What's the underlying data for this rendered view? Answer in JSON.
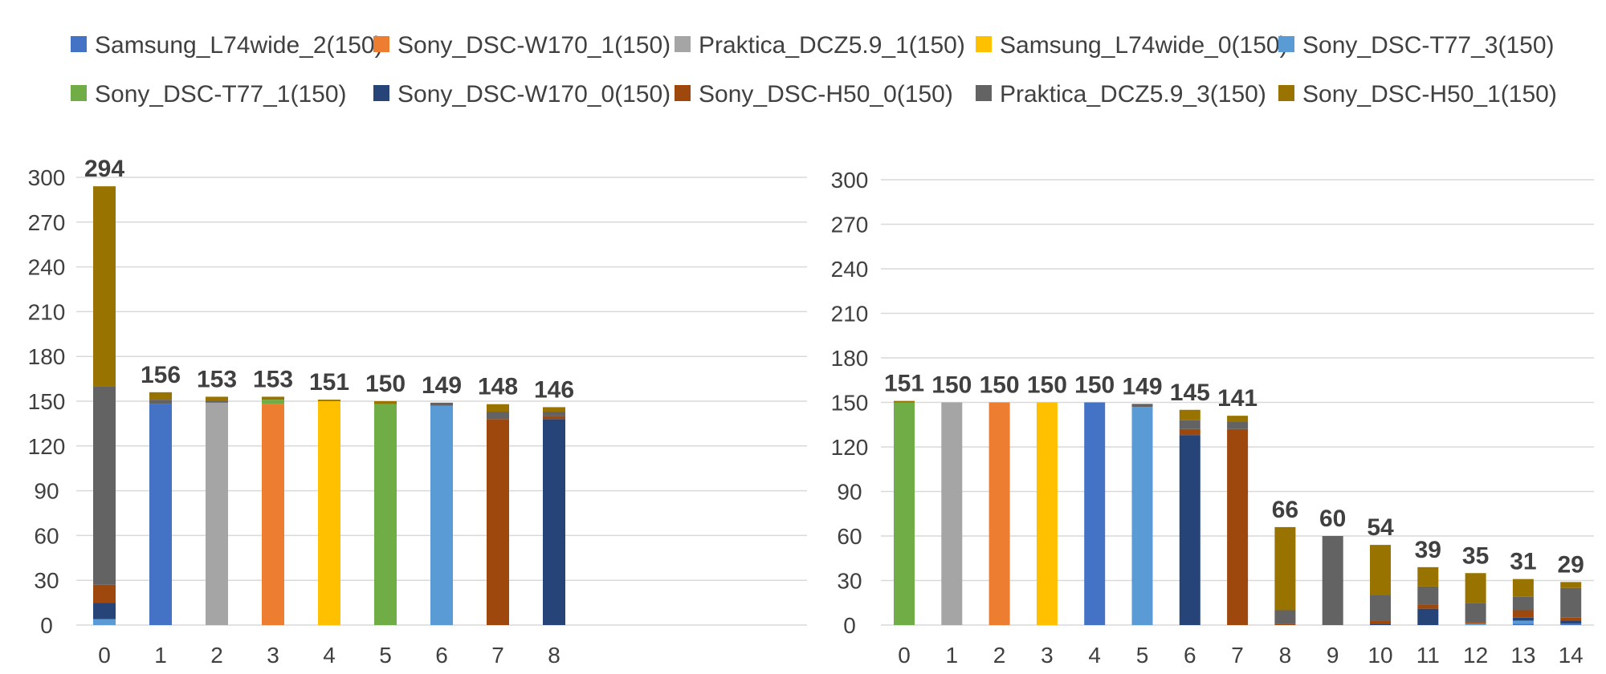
{
  "legend": [
    {
      "name": "Samsung_L74wide_2(150)",
      "color": "#4472C4"
    },
    {
      "name": "Sony_DSC-W170_1(150)",
      "color": "#ED7D31"
    },
    {
      "name": "Praktica_DCZ5.9_1(150)",
      "color": "#A5A5A5"
    },
    {
      "name": "Samsung_L74wide_0(150)",
      "color": "#FFC000"
    },
    {
      "name": "Sony_DSC-T77_3(150)",
      "color": "#5B9BD5"
    },
    {
      "name": "Sony_DSC-T77_1(150)",
      "color": "#70AD47"
    },
    {
      "name": "Sony_DSC-W170_0(150)",
      "color": "#264478"
    },
    {
      "name": "Sony_DSC-H50_0(150)",
      "color": "#9E480E"
    },
    {
      "name": "Praktica_DCZ5.9_3(150)",
      "color": "#636363"
    },
    {
      "name": "Sony_DSC-H50_1(150)",
      "color": "#997300"
    }
  ],
  "chart_data": [
    {
      "type": "bar",
      "stacked": true,
      "ylim": [
        0,
        300
      ],
      "yticks": [
        0,
        30,
        60,
        90,
        120,
        150,
        180,
        210,
        240,
        270,
        300
      ],
      "categories": [
        "0",
        "1",
        "2",
        "3",
        "4",
        "5",
        "6",
        "7",
        "8"
      ],
      "totals": [
        294,
        156,
        153,
        153,
        151,
        150,
        149,
        148,
        146
      ],
      "series": [
        {
          "name": "Samsung_L74wide_2(150)",
          "values": [
            0,
            148,
            0,
            0,
            0,
            0,
            0,
            0,
            0
          ]
        },
        {
          "name": "Sony_DSC-W170_1(150)",
          "values": [
            0,
            0,
            0,
            148,
            0,
            0,
            0,
            0,
            0
          ]
        },
        {
          "name": "Praktica_DCZ5.9_1(150)",
          "values": [
            0,
            0,
            149,
            0,
            0,
            0,
            0,
            0,
            0
          ]
        },
        {
          "name": "Samsung_L74wide_0(150)",
          "values": [
            0,
            0,
            0,
            0,
            150,
            0,
            0,
            0,
            0
          ]
        },
        {
          "name": "Sony_DSC-T77_3(150)",
          "values": [
            4,
            0,
            0,
            0,
            0,
            0,
            147,
            0,
            0
          ]
        },
        {
          "name": "Sony_DSC-T77_1(150)",
          "values": [
            0,
            0,
            0,
            3,
            0,
            148,
            0,
            0,
            0
          ]
        },
        {
          "name": "Sony_DSC-W170_0(150)",
          "values": [
            11,
            0,
            0,
            0,
            0,
            0,
            0,
            0,
            138
          ]
        },
        {
          "name": "Sony_DSC-H50_0(150)",
          "values": [
            12,
            0,
            0,
            0,
            0,
            0,
            0,
            138,
            2
          ]
        },
        {
          "name": "Praktica_DCZ5.9_3(150)",
          "values": [
            133,
            3,
            1,
            0,
            0,
            0,
            2,
            5,
            3
          ]
        },
        {
          "name": "Sony_DSC-H50_1(150)",
          "values": [
            134,
            5,
            3,
            2,
            1,
            2,
            0,
            5,
            3
          ]
        }
      ]
    },
    {
      "type": "bar",
      "stacked": true,
      "ylim": [
        0,
        300
      ],
      "yticks": [
        0,
        30,
        60,
        90,
        120,
        150,
        180,
        210,
        240,
        270,
        300
      ],
      "categories": [
        "0",
        "1",
        "2",
        "3",
        "4",
        "5",
        "6",
        "7",
        "8",
        "9",
        "10",
        "11",
        "12",
        "13",
        "14"
      ],
      "totals": [
        151,
        150,
        150,
        150,
        150,
        149,
        145,
        141,
        66,
        60,
        54,
        39,
        35,
        31,
        29
      ],
      "series": [
        {
          "name": "Samsung_L74wide_2(150)",
          "values": [
            0,
            0,
            0,
            0,
            150,
            0,
            0,
            0,
            0,
            0,
            0,
            0,
            0,
            1,
            1
          ]
        },
        {
          "name": "Sony_DSC-W170_1(150)",
          "values": [
            0,
            0,
            150,
            0,
            0,
            0,
            0,
            0,
            0,
            0,
            0,
            0,
            0,
            0,
            0
          ]
        },
        {
          "name": "Praktica_DCZ5.9_1(150)",
          "values": [
            0,
            150,
            0,
            0,
            0,
            0,
            0,
            0,
            0,
            0,
            0,
            0,
            0,
            0,
            0
          ]
        },
        {
          "name": "Samsung_L74wide_0(150)",
          "values": [
            0,
            0,
            0,
            150,
            0,
            0,
            0,
            0,
            0,
            0,
            0,
            0,
            0,
            0,
            0
          ]
        },
        {
          "name": "Sony_DSC-T77_3(150)",
          "values": [
            0,
            0,
            0,
            0,
            0,
            147,
            0,
            0,
            0,
            0,
            0,
            0,
            1,
            2,
            0
          ]
        },
        {
          "name": "Sony_DSC-T77_1(150)",
          "values": [
            150,
            0,
            0,
            0,
            0,
            0,
            0,
            0,
            0,
            0,
            0,
            0,
            0,
            0,
            0
          ]
        },
        {
          "name": "Sony_DSC-W170_0(150)",
          "values": [
            0,
            0,
            0,
            0,
            0,
            0,
            128,
            0,
            0,
            0,
            1,
            11,
            0,
            2,
            2
          ]
        },
        {
          "name": "Sony_DSC-H50_0(150)",
          "values": [
            0,
            0,
            0,
            0,
            0,
            0,
            4,
            132,
            1,
            0,
            2,
            3,
            1,
            5,
            2
          ]
        },
        {
          "name": "Praktica_DCZ5.9_3(150)",
          "values": [
            0,
            0,
            0,
            0,
            0,
            2,
            6,
            5,
            9,
            60,
            17,
            12,
            13,
            9,
            20
          ]
        },
        {
          "name": "Sony_DSC-H50_1(150)",
          "values": [
            1,
            0,
            0,
            0,
            0,
            0,
            7,
            4,
            56,
            0,
            34,
            13,
            20,
            12,
            4
          ]
        }
      ]
    }
  ]
}
